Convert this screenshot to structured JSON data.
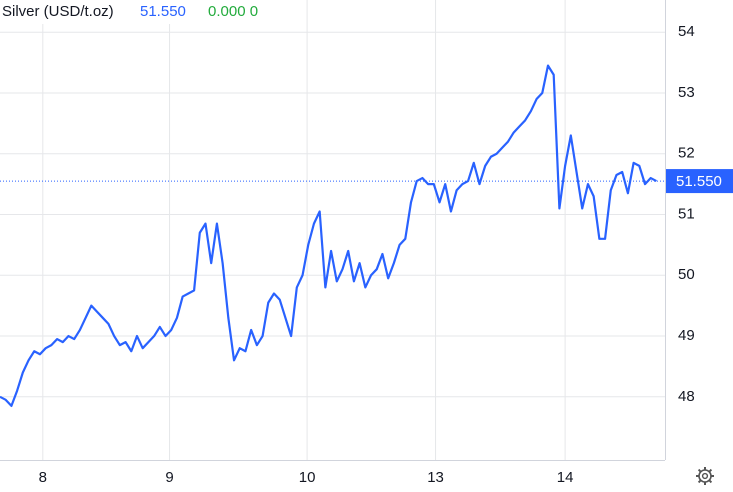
{
  "header": {
    "title": "Silver (USD/t.oz)",
    "price": "51.550",
    "change": "0.000 0"
  },
  "chart_data": {
    "type": "line",
    "series": [
      {
        "name": "Silver",
        "color": "#2962ff",
        "values": [
          48.0,
          47.95,
          47.85,
          48.1,
          48.4,
          48.6,
          48.75,
          48.7,
          48.8,
          48.85,
          48.95,
          48.9,
          49.0,
          48.95,
          49.1,
          49.3,
          49.5,
          49.4,
          49.3,
          49.2,
          49.0,
          48.85,
          48.9,
          48.75,
          49.0,
          48.8,
          48.9,
          49.0,
          49.15,
          49.0,
          49.1,
          49.3,
          49.65,
          49.7,
          49.75,
          50.7,
          50.85,
          50.2,
          50.85,
          50.2,
          49.3,
          48.6,
          48.8,
          48.75,
          49.1,
          48.85,
          49.0,
          49.55,
          49.7,
          49.6,
          49.3,
          49.0,
          49.8,
          50.0,
          50.5,
          50.85,
          51.05,
          49.8,
          50.4,
          49.9,
          50.1,
          50.4,
          49.9,
          50.2,
          49.8,
          50.0,
          50.1,
          50.35,
          49.95,
          50.2,
          50.5,
          50.6,
          51.2,
          51.55,
          51.6,
          51.5,
          51.5,
          51.2,
          51.5,
          51.05,
          51.4,
          51.5,
          51.55,
          51.85,
          51.5,
          51.8,
          51.95,
          52.0,
          52.1,
          52.2,
          52.35,
          52.45,
          52.55,
          52.7,
          52.9,
          53.0,
          53.45,
          53.3,
          51.1,
          51.8,
          52.3,
          51.7,
          51.1,
          51.5,
          51.3,
          50.6,
          50.6,
          51.4,
          51.65,
          51.7,
          51.35,
          51.85,
          51.8,
          51.5,
          51.6,
          51.55
        ]
      }
    ],
    "xlim": [
      0,
      116.5
    ],
    "xticks": [
      {
        "value": 7.5,
        "label": "8"
      },
      {
        "value": 29.7,
        "label": "9"
      },
      {
        "value": 53.8,
        "label": "10"
      },
      {
        "value": 76.3,
        "label": "13"
      },
      {
        "value": 99,
        "label": "14"
      }
    ],
    "ylim": [
      46.96,
      54.53
    ],
    "yticks": [
      48,
      49,
      50,
      51,
      52,
      53,
      54
    ],
    "grid": true,
    "price_line": {
      "value": 51.55,
      "label": "51.550",
      "color": "#2962ff"
    }
  }
}
